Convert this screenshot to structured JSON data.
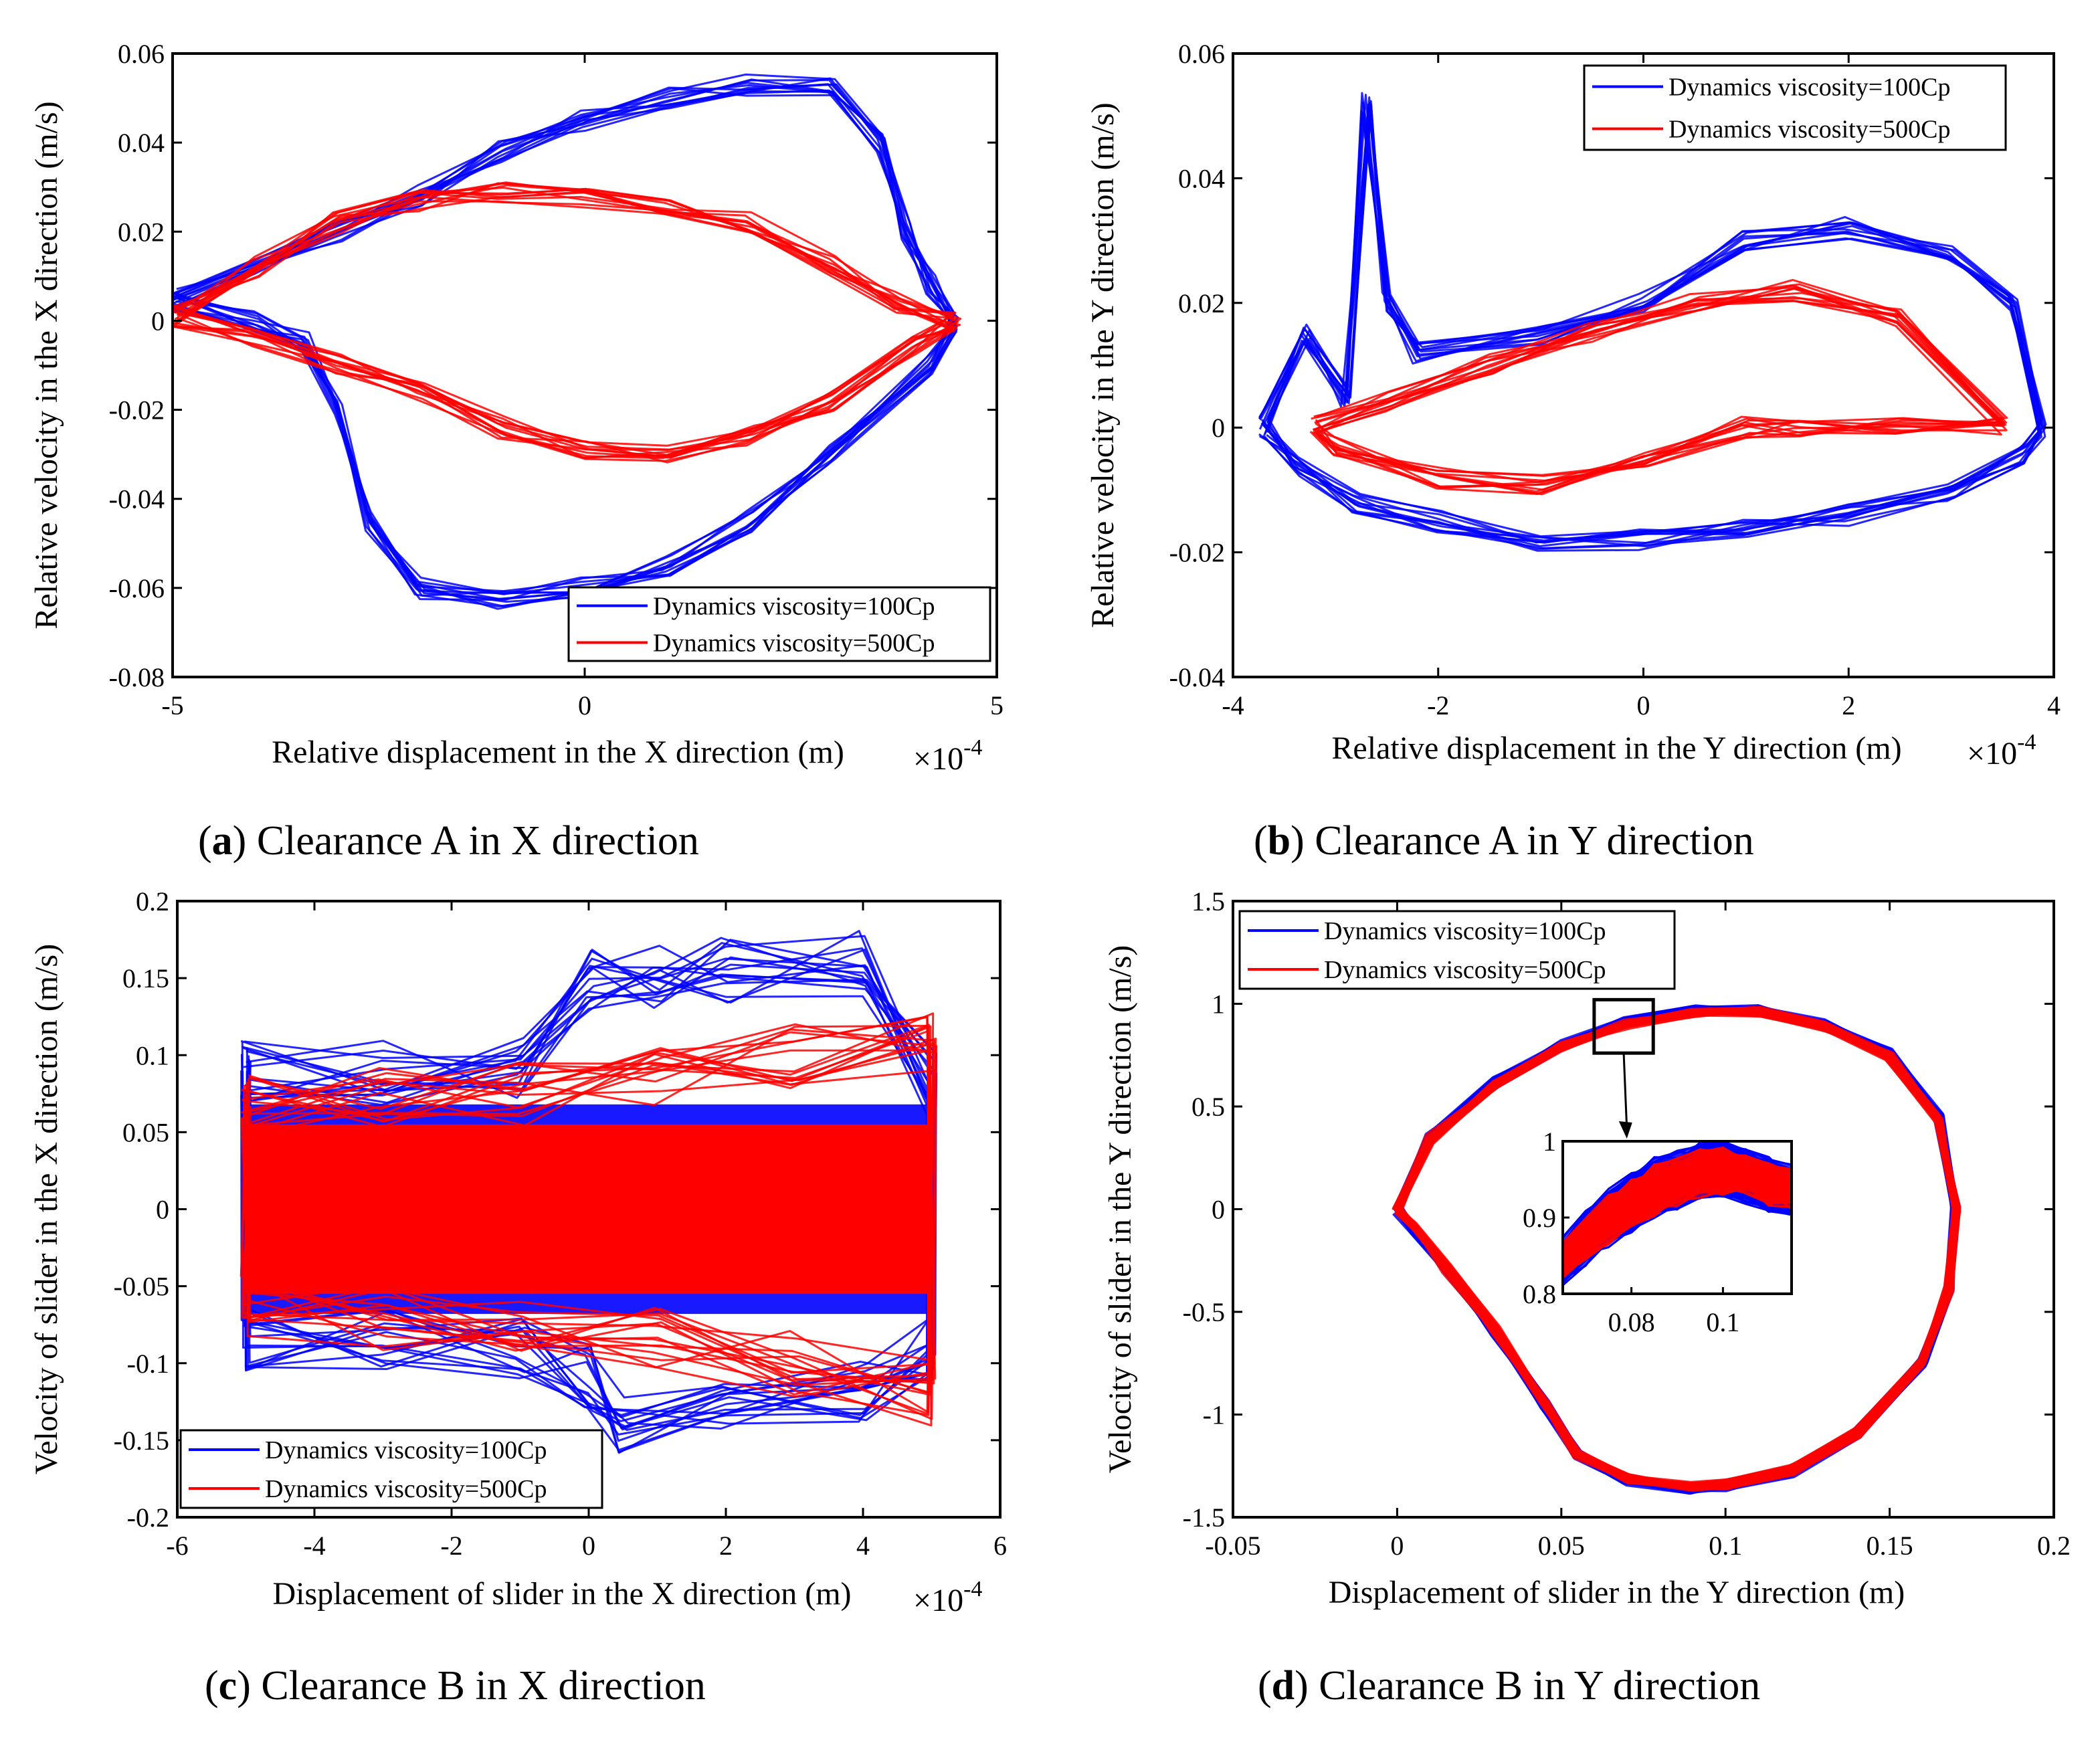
{
  "figure": {
    "captions": [
      {
        "letter": "a",
        "text": " Clearance A in X direction"
      },
      {
        "letter": "b",
        "text": " Clearance A in Y direction"
      },
      {
        "letter": "c",
        "text": " Clearance B in X direction"
      },
      {
        "letter": "d",
        "text": " Clearance B in Y direction"
      }
    ]
  },
  "chart_data": [
    {
      "id": "a",
      "type": "line",
      "xlabel": "Relative displacement in the X direction (m)",
      "ylabel": "Relative velocity in the X direction (m/s)",
      "xlim": [
        -5,
        5
      ],
      "ylim": [
        -0.08,
        0.06
      ],
      "xticks": [
        "-5",
        "0",
        "5"
      ],
      "yticks": [
        "-0.08",
        "-0.06",
        "-0.04",
        "-0.02",
        "0",
        "0.02",
        "0.04",
        "0.06"
      ],
      "xexponent": "-4",
      "legend_position": "bottom-right",
      "series": [
        {
          "name": "Dynamics viscosity=100Cp",
          "color": "#0000ff",
          "x": [
            -5.0,
            -4.0,
            -3.0,
            -2.0,
            -1.0,
            0.0,
            1.0,
            2.0,
            3.0,
            3.6,
            3.9,
            4.2,
            4.5,
            4.2,
            3.0,
            2.0,
            1.0,
            0.0,
            -1.0,
            -2.0,
            -2.6,
            -3.0,
            -3.4,
            -4.0,
            -5.0
          ],
          "y": [
            0.005,
            0.012,
            0.02,
            0.028,
            0.038,
            0.045,
            0.05,
            0.053,
            0.052,
            0.04,
            0.02,
            0.008,
            0.0,
            -0.01,
            -0.03,
            -0.045,
            -0.055,
            -0.06,
            -0.063,
            -0.06,
            -0.045,
            -0.02,
            -0.005,
            0.0,
            0.005
          ]
        },
        {
          "name": "Dynamics viscosity=500Cp",
          "color": "#ff0000",
          "x": [
            -5.0,
            -4.0,
            -3.0,
            -2.0,
            -1.0,
            0.0,
            1.0,
            2.0,
            3.0,
            3.8,
            4.5,
            4.0,
            3.0,
            2.0,
            1.0,
            0.0,
            -1.0,
            -2.0,
            -3.0,
            -4.0,
            -5.0
          ],
          "y": [
            0.001,
            0.012,
            0.022,
            0.027,
            0.029,
            0.028,
            0.026,
            0.022,
            0.012,
            0.004,
            0.0,
            -0.006,
            -0.018,
            -0.026,
            -0.03,
            -0.029,
            -0.024,
            -0.016,
            -0.01,
            -0.004,
            0.001
          ]
        }
      ]
    },
    {
      "id": "b",
      "type": "line",
      "xlabel": "Relative displacement in the Y direction (m)",
      "ylabel": "Relative velocity in the Y direction (m/s)",
      "xlim": [
        -4,
        4
      ],
      "ylim": [
        -0.04,
        0.06
      ],
      "xticks": [
        "-4",
        "-2",
        "0",
        "2",
        "4"
      ],
      "yticks": [
        "-0.04",
        "-0.02",
        "0",
        "0.02",
        "0.04",
        "0.06"
      ],
      "xexponent": "-4",
      "legend_position": "top-right",
      "series": [
        {
          "name": "Dynamics viscosity=100Cp",
          "color": "#0000ff",
          "x": [
            -3.7,
            -3.3,
            -2.9,
            -2.7,
            -2.5,
            -2.2,
            -1.0,
            0.0,
            1.0,
            2.0,
            3.0,
            3.6,
            3.9,
            3.7,
            3.0,
            2.0,
            1.0,
            0.0,
            -1.0,
            -2.0,
            -2.8,
            -3.4,
            -3.7
          ],
          "y": [
            0.0,
            0.015,
            0.005,
            0.052,
            0.02,
            0.012,
            0.015,
            0.02,
            0.03,
            0.032,
            0.028,
            0.02,
            0.0,
            -0.004,
            -0.01,
            -0.014,
            -0.016,
            -0.018,
            -0.018,
            -0.015,
            -0.012,
            -0.006,
            0.0
          ]
        },
        {
          "name": "Dynamics viscosity=500Cp",
          "color": "#ff0000",
          "x": [
            -3.2,
            -2.5,
            -1.5,
            -0.5,
            0.5,
            1.5,
            2.5,
            3.5,
            2.5,
            1.5,
            1.0,
            0.0,
            -1.0,
            -2.0,
            -3.0,
            -3.2
          ],
          "y": [
            0.0,
            0.004,
            0.01,
            0.015,
            0.02,
            0.022,
            0.018,
            0.0,
            0.0,
            0.0,
            0.0,
            -0.005,
            -0.009,
            -0.008,
            -0.003,
            0.0
          ]
        }
      ]
    },
    {
      "id": "c",
      "type": "line",
      "xlabel": "Displacement of slider in the X direction (m)",
      "ylabel": "Velocity of slider in the X direction (m/s)",
      "xlim": [
        -6,
        6
      ],
      "ylim": [
        -0.2,
        0.2
      ],
      "xticks": [
        "-6",
        "-4",
        "-2",
        "0",
        "2",
        "4",
        "6"
      ],
      "yticks": [
        "-0.2",
        "-0.15",
        "-0.1",
        "-0.05",
        "0",
        "0.05",
        "0.1",
        "0.15",
        "0.2"
      ],
      "xexponent": "-4",
      "legend_position": "bottom-left",
      "series": [
        {
          "name": "Dynamics viscosity=100Cp",
          "color": "#0000ff",
          "x": [
            -5.0,
            -3.0,
            -1.0,
            0.0,
            1.0,
            2.0,
            4.0,
            5.0,
            5.0,
            4.0,
            2.0,
            0.5,
            0.0,
            -1.0,
            -3.0,
            -5.0,
            -5.0
          ],
          "y": [
            0.09,
            0.088,
            0.09,
            0.15,
            0.152,
            0.155,
            0.16,
            0.08,
            -0.09,
            -0.12,
            -0.13,
            -0.14,
            -0.11,
            -0.09,
            -0.085,
            -0.085,
            0.09
          ]
        },
        {
          "name": "Dynamics viscosity=500Cp",
          "color": "#ff0000",
          "x": [
            -5.0,
            -3.0,
            -1.0,
            1.0,
            3.0,
            5.0,
            5.0,
            3.0,
            1.0,
            -1.0,
            -3.0,
            -5.0,
            -5.0
          ],
          "y": [
            0.065,
            0.07,
            0.075,
            0.085,
            0.1,
            0.11,
            -0.12,
            -0.1,
            -0.085,
            -0.075,
            -0.07,
            -0.065,
            0.065
          ]
        }
      ]
    },
    {
      "id": "d",
      "type": "line",
      "xlabel": "Displacement of slider in the Y direction (m)",
      "ylabel": "Velocity of slider in the Y direction (m/s)",
      "xlim": [
        -0.05,
        0.2
      ],
      "ylim": [
        -1.5,
        1.5
      ],
      "xticks": [
        "-0.05",
        "0",
        "0.05",
        "0.1",
        "0.15",
        "0.2"
      ],
      "yticks": [
        "-1.5",
        "-1",
        "-0.5",
        "0",
        "0.5",
        "1",
        "1.5"
      ],
      "xexponent": "",
      "legend_position": "top-left",
      "series": [
        {
          "name": "Dynamics viscosity=100Cp",
          "color": "#0000ff",
          "x": [
            0.0,
            0.01,
            0.03,
            0.05,
            0.07,
            0.09,
            0.11,
            0.13,
            0.15,
            0.165,
            0.17,
            0.168,
            0.16,
            0.14,
            0.12,
            0.1,
            0.09,
            0.07,
            0.055,
            0.045,
            0.03,
            0.015,
            0.005,
            0.0
          ],
          "y": [
            0.0,
            0.35,
            0.62,
            0.8,
            0.91,
            0.97,
            0.97,
            0.9,
            0.76,
            0.45,
            0.0,
            -0.4,
            -0.75,
            -1.1,
            -1.28,
            -1.35,
            -1.36,
            -1.32,
            -1.2,
            -0.95,
            -0.6,
            -0.3,
            -0.1,
            0.0
          ]
        },
        {
          "name": "Dynamics viscosity=500Cp",
          "color": "#ff0000",
          "x": [
            0.0,
            0.01,
            0.03,
            0.05,
            0.07,
            0.09,
            0.11,
            0.13,
            0.15,
            0.165,
            0.17,
            0.168,
            0.16,
            0.14,
            0.12,
            0.1,
            0.09,
            0.07,
            0.055,
            0.045,
            0.03,
            0.015,
            0.005,
            0.0
          ],
          "y": [
            0.0,
            0.34,
            0.61,
            0.79,
            0.9,
            0.96,
            0.96,
            0.89,
            0.75,
            0.44,
            0.0,
            -0.39,
            -0.74,
            -1.09,
            -1.27,
            -1.34,
            -1.35,
            -1.31,
            -1.19,
            -0.94,
            -0.59,
            -0.29,
            -0.09,
            0.0
          ]
        }
      ],
      "inset": {
        "xlim": [
          0.065,
          0.115
        ],
        "ylim": [
          0.8,
          1.0
        ],
        "xticks": [
          "0.08",
          "0.1"
        ],
        "yticks": [
          "0.8",
          "0.9",
          "1"
        ],
        "zoom_box": {
          "x": [
            0.06,
            0.078
          ],
          "y": [
            0.76,
            1.02
          ]
        },
        "series": [
          {
            "color": "#0000ff",
            "x": [
              0.065,
              0.07,
              0.075,
              0.08,
              0.085,
              0.09,
              0.095,
              0.1,
              0.105,
              0.11,
              0.115,
              0.115,
              0.11,
              0.105,
              0.1,
              0.095,
              0.09,
              0.085,
              0.08,
              0.075,
              0.07,
              0.065
            ],
            "y": [
              0.87,
              0.9,
              0.93,
              0.95,
              0.97,
              0.98,
              0.99,
              0.995,
              0.98,
              0.97,
              0.96,
              0.91,
              0.915,
              0.925,
              0.935,
              0.93,
              0.92,
              0.905,
              0.89,
              0.87,
              0.845,
              0.82
            ]
          },
          {
            "color": "#ff0000",
            "x": [
              0.065,
              0.07,
              0.075,
              0.08,
              0.085,
              0.09,
              0.095,
              0.1,
              0.105,
              0.11,
              0.115,
              0.115,
              0.11,
              0.105,
              0.1,
              0.095,
              0.09,
              0.085,
              0.08,
              0.075,
              0.07,
              0.065
            ],
            "y": [
              0.86,
              0.89,
              0.92,
              0.94,
              0.96,
              0.97,
              0.98,
              0.985,
              0.975,
              0.965,
              0.955,
              0.92,
              0.925,
              0.935,
              0.94,
              0.935,
              0.925,
              0.91,
              0.895,
              0.875,
              0.855,
              0.83
            ]
          }
        ]
      }
    }
  ]
}
